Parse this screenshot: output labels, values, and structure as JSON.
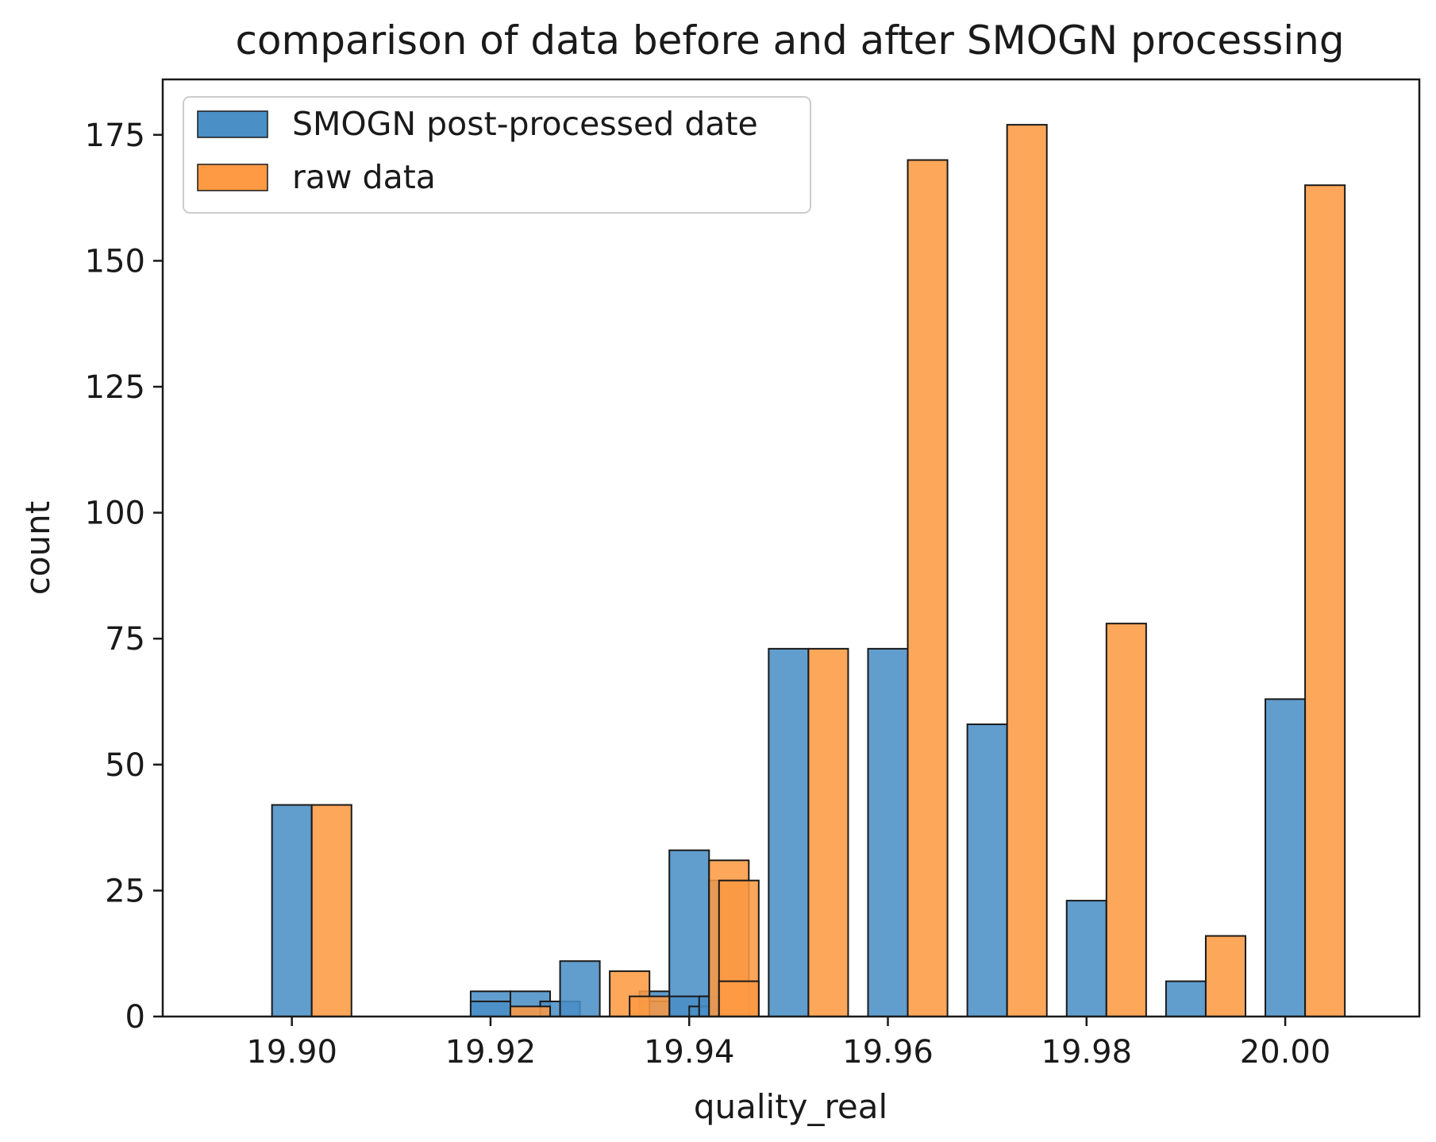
{
  "chart_data": {
    "type": "bar",
    "title": "comparison of data  before and after SMOGN processing",
    "xlabel": "quality_real",
    "ylabel": "count",
    "xlim": [
      19.887,
      20.0135
    ],
    "ylim": [
      0,
      186
    ],
    "xticks": [
      19.9,
      19.92,
      19.94,
      19.96,
      19.98,
      20.0
    ],
    "xtick_labels": [
      "19.90",
      "19.92",
      "19.94",
      "19.96",
      "19.98",
      "20.00"
    ],
    "yticks": [
      0,
      25,
      50,
      75,
      100,
      125,
      150,
      175
    ],
    "ytick_labels": [
      "0",
      "25",
      "50",
      "75",
      "100",
      "125",
      "150",
      "175"
    ],
    "grid": false,
    "legend_position": "top-left",
    "series": [
      {
        "name": "SMOGN post-processed date",
        "color": "#4a8fc6",
        "bars": [
          {
            "x0": 19.898,
            "x1": 19.902,
            "value": 42
          },
          {
            "x0": 19.918,
            "x1": 19.922,
            "value": 5
          },
          {
            "x0": 19.918,
            "x1": 19.922,
            "value": 3
          },
          {
            "x0": 19.922,
            "x1": 19.926,
            "value": 5
          },
          {
            "x0": 19.925,
            "x1": 19.929,
            "value": 3
          },
          {
            "x0": 19.927,
            "x1": 19.931,
            "value": 11
          },
          {
            "x0": 19.935,
            "x1": 19.938,
            "value": 5
          },
          {
            "x0": 19.935,
            "x1": 19.938,
            "value": 3
          },
          {
            "x0": 19.938,
            "x1": 19.942,
            "value": 33
          },
          {
            "x0": 19.938,
            "x1": 19.942,
            "value": 4
          },
          {
            "x0": 19.94,
            "x1": 19.943,
            "value": 2
          },
          {
            "x0": 19.941,
            "x1": 19.945,
            "value": 4
          },
          {
            "x0": 19.942,
            "x1": 19.946,
            "value": 27
          },
          {
            "x0": 19.943,
            "x1": 19.947,
            "value": 7
          },
          {
            "x0": 19.948,
            "x1": 19.952,
            "value": 73
          },
          {
            "x0": 19.958,
            "x1": 19.962,
            "value": 73
          },
          {
            "x0": 19.968,
            "x1": 19.972,
            "value": 58
          },
          {
            "x0": 19.978,
            "x1": 19.982,
            "value": 23
          },
          {
            "x0": 19.988,
            "x1": 19.992,
            "value": 7
          },
          {
            "x0": 19.998,
            "x1": 20.002,
            "value": 63
          }
        ]
      },
      {
        "name": "raw data",
        "color": "#fd9a43",
        "bars": [
          {
            "x0": 19.902,
            "x1": 19.906,
            "value": 42
          },
          {
            "x0": 19.922,
            "x1": 19.926,
            "value": 2
          },
          {
            "x0": 19.932,
            "x1": 19.936,
            "value": 9
          },
          {
            "x0": 19.934,
            "x1": 19.938,
            "value": 4
          },
          {
            "x0": 19.942,
            "x1": 19.946,
            "value": 31
          },
          {
            "x0": 19.943,
            "x1": 19.947,
            "value": 27
          },
          {
            "x0": 19.943,
            "x1": 19.947,
            "value": 7
          },
          {
            "x0": 19.952,
            "x1": 19.956,
            "value": 73
          },
          {
            "x0": 19.962,
            "x1": 19.966,
            "value": 170
          },
          {
            "x0": 19.972,
            "x1": 19.976,
            "value": 177
          },
          {
            "x0": 19.982,
            "x1": 19.986,
            "value": 78
          },
          {
            "x0": 19.992,
            "x1": 19.996,
            "value": 16
          },
          {
            "x0": 20.002,
            "x1": 20.006,
            "value": 165
          }
        ]
      }
    ]
  }
}
